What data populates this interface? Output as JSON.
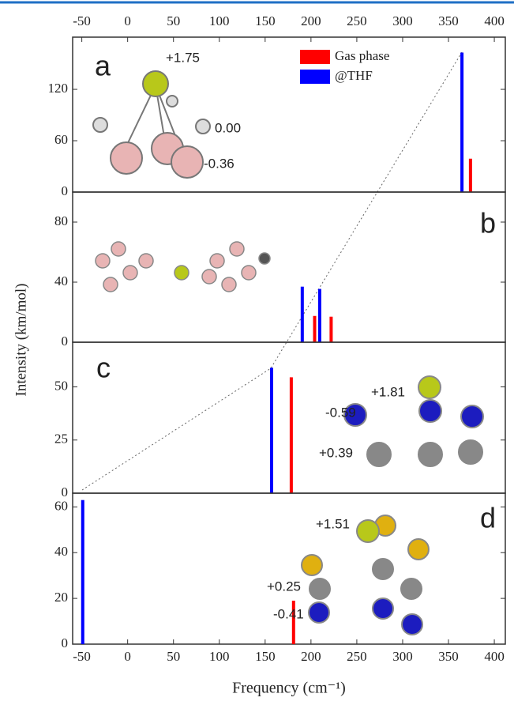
{
  "chart_data": [
    {
      "type": "bar",
      "panel_label": "a",
      "ylabel": "Intensity (km/mol)",
      "xlim": [
        -60,
        412
      ],
      "xticks": [
        -50,
        0,
        50,
        100,
        150,
        200,
        250,
        300,
        350,
        400
      ],
      "ylim": [
        0,
        181
      ],
      "yticks": [
        0,
        60,
        120
      ],
      "series": [
        {
          "name": "Gas phase",
          "color": "#ff0000",
          "x": [
            374
          ],
          "values": [
            39
          ]
        },
        {
          "name": "@THF",
          "color": "#0000ff",
          "x": [
            364.7
          ],
          "values": [
            163
          ]
        }
      ],
      "annotations": [
        "+1.75",
        "0.00",
        "-0.36"
      ]
    },
    {
      "type": "bar",
      "panel_label": "b",
      "xlim": [
        -60,
        412
      ],
      "ylim": [
        0,
        100
      ],
      "yticks": [
        0,
        40,
        80
      ],
      "series": [
        {
          "color": "#ff0000",
          "x": [
            204,
            222
          ],
          "values": [
            17.5,
            17
          ]
        },
        {
          "color": "#0000ff",
          "x": [
            190.5,
            209.5
          ],
          "values": [
            37,
            35.5
          ]
        }
      ]
    },
    {
      "type": "bar",
      "panel_label": "c",
      "xlim": [
        -60,
        412
      ],
      "ylim": [
        0,
        71
      ],
      "yticks": [
        0,
        25,
        50
      ],
      "series": [
        {
          "color": "#ff0000",
          "x": [
            178.5
          ],
          "values": [
            54.5
          ]
        },
        {
          "color": "#0000ff",
          "x": [
            157
          ],
          "values": [
            59
          ]
        }
      ],
      "annotations": [
        "+1.81",
        "-0.59",
        "+0.39"
      ]
    },
    {
      "type": "bar",
      "panel_label": "d",
      "xlabel": "Frequency (cm⁻¹)",
      "xlim": [
        -60,
        412
      ],
      "xticks": [
        -50,
        0,
        50,
        100,
        150,
        200,
        250,
        300,
        350,
        400
      ],
      "ylim": [
        0,
        66
      ],
      "yticks": [
        0,
        20,
        40,
        60
      ],
      "series": [
        {
          "color": "#ff0000",
          "x": [
            181
          ],
          "values": [
            19
          ]
        },
        {
          "color": "#0000ff",
          "x": [
            -49
          ],
          "values": [
            63
          ]
        }
      ],
      "annotations": [
        "+1.51",
        "+0.25",
        "-0.41"
      ]
    }
  ]
}
